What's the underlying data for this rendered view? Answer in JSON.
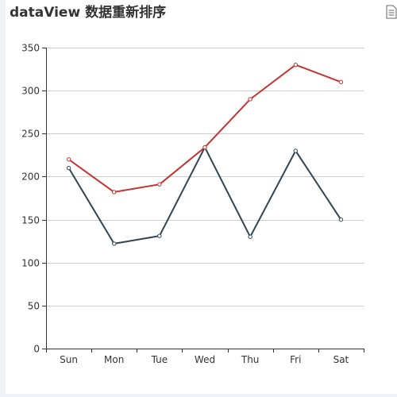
{
  "title": "dataView 数据重新排序",
  "toolbox": {
    "icon": "data-view-icon"
  },
  "colors": {
    "series1": "#2f4554",
    "series2": "#c23531",
    "grid": "#cccccc",
    "axis": "#333333"
  },
  "chart_data": {
    "type": "line",
    "categories": [
      "Sun",
      "Mon",
      "Tue",
      "Wed",
      "Thu",
      "Fri",
      "Sat"
    ],
    "ylim": [
      0,
      350
    ],
    "yticks": [
      0,
      50,
      100,
      150,
      200,
      250,
      300,
      350
    ],
    "grid": true,
    "legend": "none",
    "series": [
      {
        "values": [
          210,
          122,
          131,
          234,
          130,
          230,
          150
        ],
        "color": "#2f4554"
      },
      {
        "values": [
          220,
          182,
          191,
          234,
          290,
          330,
          310
        ],
        "color": "#c23531"
      }
    ]
  }
}
